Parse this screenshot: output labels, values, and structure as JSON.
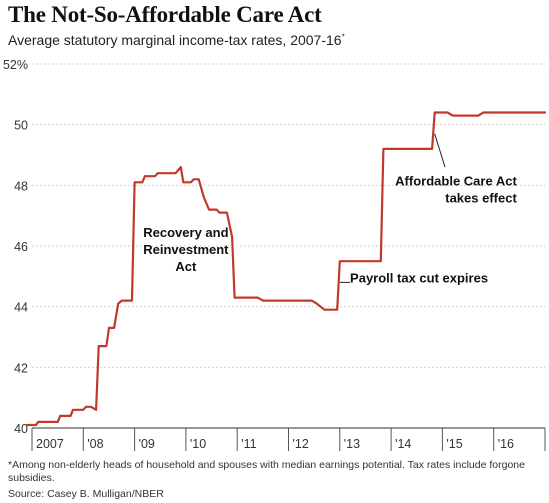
{
  "chart_data": {
    "type": "line",
    "title": "The Not-So-Affordable Care Act",
    "subtitle": "Average statutory marginal income-tax rates, 2007-16",
    "subtitle_marker": "*",
    "ylim": [
      40,
      52
    ],
    "yticks": [
      {
        "value": 40,
        "label": "40"
      },
      {
        "value": 42,
        "label": "42"
      },
      {
        "value": 44,
        "label": "44"
      },
      {
        "value": 46,
        "label": "46"
      },
      {
        "value": 48,
        "label": "48"
      },
      {
        "value": 50,
        "label": "50"
      },
      {
        "value": 52,
        "label": "52%"
      }
    ],
    "xlim": [
      2007,
      2017
    ],
    "xticks": [
      {
        "value": 2007,
        "label": "2007"
      },
      {
        "value": 2008,
        "label": "'08"
      },
      {
        "value": 2009,
        "label": "'09"
      },
      {
        "value": 2010,
        "label": "'10"
      },
      {
        "value": 2011,
        "label": "'11"
      },
      {
        "value": 2012,
        "label": "'12"
      },
      {
        "value": 2013,
        "label": "'13"
      },
      {
        "value": 2014,
        "label": "'14"
      },
      {
        "value": 2015,
        "label": "'15"
      },
      {
        "value": 2016,
        "label": "'16"
      }
    ],
    "grid": {
      "horizontal": true,
      "vertical": false
    },
    "series": [
      {
        "color": "#c0392b",
        "points": [
          [
            2006.9,
            40.1
          ],
          [
            2007.08,
            40.1
          ],
          [
            2007.12,
            40.2
          ],
          [
            2007.25,
            40.2
          ],
          [
            2007.3,
            40.2
          ],
          [
            2007.5,
            40.2
          ],
          [
            2007.55,
            40.4
          ],
          [
            2007.75,
            40.4
          ],
          [
            2007.8,
            40.6
          ],
          [
            2008.0,
            40.6
          ],
          [
            2008.05,
            40.7
          ],
          [
            2008.15,
            40.7
          ],
          [
            2008.25,
            40.6
          ],
          [
            2008.3,
            42.7
          ],
          [
            2008.45,
            42.7
          ],
          [
            2008.5,
            43.3
          ],
          [
            2008.6,
            43.3
          ],
          [
            2008.68,
            44.1
          ],
          [
            2008.75,
            44.2
          ],
          [
            2008.95,
            44.2
          ],
          [
            2009.0,
            48.1
          ],
          [
            2009.15,
            48.1
          ],
          [
            2009.2,
            48.3
          ],
          [
            2009.4,
            48.3
          ],
          [
            2009.45,
            48.4
          ],
          [
            2009.8,
            48.4
          ],
          [
            2009.9,
            48.6
          ],
          [
            2009.95,
            48.1
          ],
          [
            2010.1,
            48.1
          ],
          [
            2010.15,
            48.2
          ],
          [
            2010.25,
            48.2
          ],
          [
            2010.35,
            47.6
          ],
          [
            2010.45,
            47.2
          ],
          [
            2010.6,
            47.2
          ],
          [
            2010.65,
            47.1
          ],
          [
            2010.8,
            47.1
          ],
          [
            2010.9,
            46.3
          ],
          [
            2010.95,
            44.3
          ],
          [
            2011.4,
            44.3
          ],
          [
            2011.5,
            44.2
          ],
          [
            2012.45,
            44.2
          ],
          [
            2012.55,
            44.1
          ],
          [
            2012.7,
            43.9
          ],
          [
            2012.95,
            43.9
          ],
          [
            2013.0,
            45.5
          ],
          [
            2013.8,
            45.5
          ],
          [
            2013.85,
            49.2
          ],
          [
            2014.8,
            49.2
          ],
          [
            2014.85,
            50.4
          ],
          [
            2015.1,
            50.4
          ],
          [
            2015.2,
            50.3
          ],
          [
            2015.7,
            50.3
          ],
          [
            2015.8,
            50.4
          ],
          [
            2017.0,
            50.4
          ]
        ]
      }
    ],
    "annotations": [
      {
        "lines": [
          "Recovery and",
          "Reinvestment",
          "Act"
        ],
        "x": 2010.0,
        "y": 46.3,
        "align": "center"
      },
      {
        "lines": [
          "Payroll tax cut expires"
        ],
        "x": 2013.2,
        "y": 44.8,
        "align": "left",
        "leader": [
          [
            2013.0,
            44.8
          ],
          [
            2013.2,
            44.8
          ]
        ]
      },
      {
        "lines": [
          "Affordable Care Act",
          "takes effect"
        ],
        "x": 2016.45,
        "y": 48.0,
        "align": "right",
        "leader": [
          [
            2014.85,
            49.7
          ],
          [
            2015.05,
            48.6
          ]
        ]
      }
    ],
    "footnote": "*Among non-elderly heads of household and spouses with median earnings potential. Tax rates include forgone subsidies.",
    "source": "Source: Casey B. Mulligan/NBER"
  }
}
